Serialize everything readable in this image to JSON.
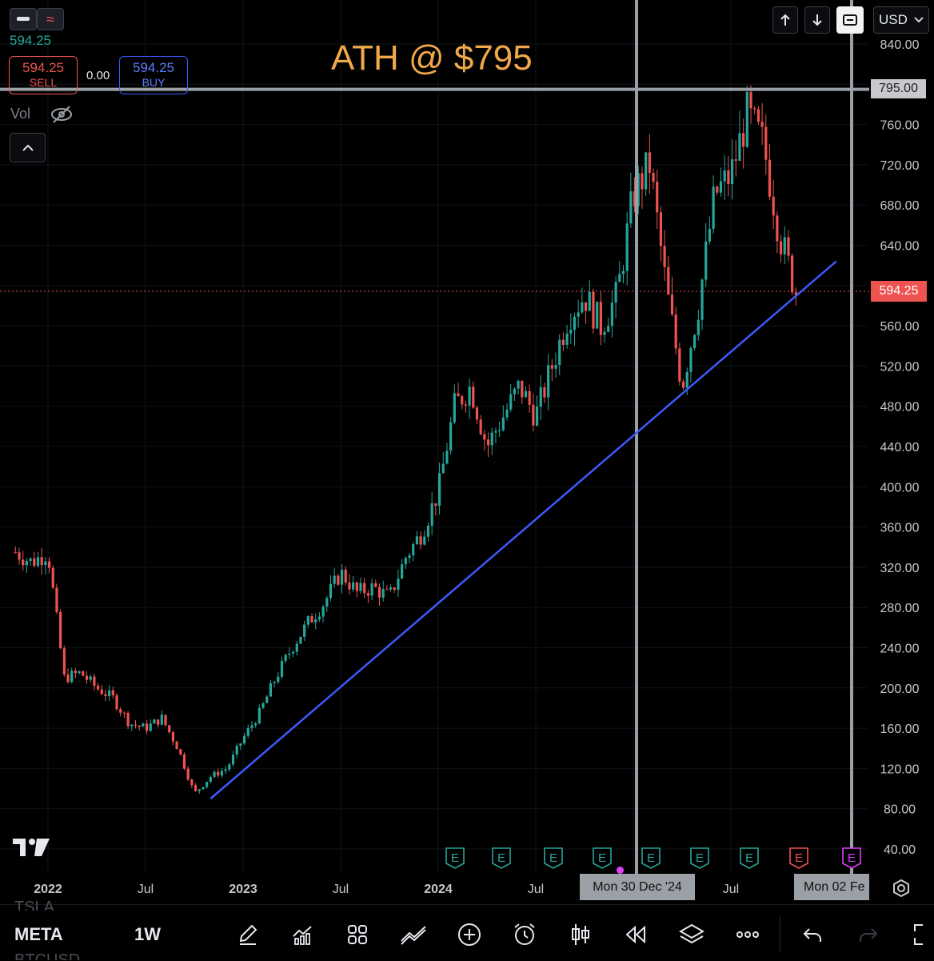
{
  "header": {
    "buttons": [
      "minus",
      "≈"
    ],
    "last_price": "594.25",
    "sell": {
      "price": "594.25",
      "label": "SELL"
    },
    "spread": "0.00",
    "buy": {
      "price": "594.25",
      "label": "BUY"
    },
    "vol_label": "Vol",
    "currency": "USD"
  },
  "annotation": "ATH @ $795",
  "markers": {
    "ath_label": "795.00",
    "current_label": "594.25"
  },
  "crosshair_date": "Mon 30 Dec '24",
  "end_date": "Mon 02 Fe",
  "x_labels": [
    "2022",
    "Jul",
    "2023",
    "Jul",
    "2024",
    "Jul",
    "Jul"
  ],
  "y_ticks": [
    "840.00",
    "760.00",
    "720.00",
    "680.00",
    "640.00",
    "560.00",
    "520.00",
    "480.00",
    "440.00",
    "400.00",
    "360.00",
    "320.00",
    "280.00",
    "240.00",
    "200.00",
    "160.00",
    "120.00",
    "80.00",
    "40.00"
  ],
  "earnings_badge": "E",
  "bottom_bar": {
    "symbol_above": "TSLA",
    "symbol": "META",
    "symbol_below": "BTCUSD",
    "interval": "1W"
  },
  "colors": {
    "up": "#26a69a",
    "down": "#ef5350",
    "trendline": "#3d5afe",
    "annotation": "#f0a84a",
    "crosshair": "#9aa0a6"
  },
  "chart_data": {
    "type": "candlestick",
    "symbol": "META",
    "interval": "1W",
    "ylim": [
      20,
      850
    ],
    "x": [
      "2021-11",
      "2021-12",
      "2022-01",
      "2022-02",
      "2022-03",
      "2022-04",
      "2022-05",
      "2022-06",
      "2022-07",
      "2022-08",
      "2022-09",
      "2022-10",
      "2022-11",
      "2022-12",
      "2023-01",
      "2023-02",
      "2023-03",
      "2023-04",
      "2023-05",
      "2023-06",
      "2023-07",
      "2023-08",
      "2023-09",
      "2023-10",
      "2023-11",
      "2023-12",
      "2024-01",
      "2024-02",
      "2024-03",
      "2024-04",
      "2024-05",
      "2024-06",
      "2024-07",
      "2024-08",
      "2024-09",
      "2024-10",
      "2024-11",
      "2024-12",
      "2025-01",
      "2025-02",
      "2025-03",
      "2025-04",
      "2025-05",
      "2025-06",
      "2025-07",
      "2025-08",
      "2025-09",
      "2025-10",
      "2025-11"
    ],
    "close": [
      335,
      325,
      335,
      210,
      215,
      200,
      190,
      165,
      160,
      170,
      140,
      95,
      112,
      120,
      150,
      175,
      210,
      240,
      265,
      285,
      315,
      295,
      300,
      290,
      330,
      355,
      395,
      480,
      500,
      440,
      470,
      500,
      470,
      520,
      570,
      590,
      560,
      590,
      690,
      720,
      600,
      500,
      580,
      690,
      710,
      770,
      740,
      650,
      594
    ],
    "annotations": [
      "ATH @ $795"
    ],
    "reference_levels": {
      "ath": 795,
      "last": 594.25
    },
    "trendline": {
      "from": [
        "2022-11",
        90
      ],
      "to": [
        "2025-12",
        620
      ]
    }
  }
}
